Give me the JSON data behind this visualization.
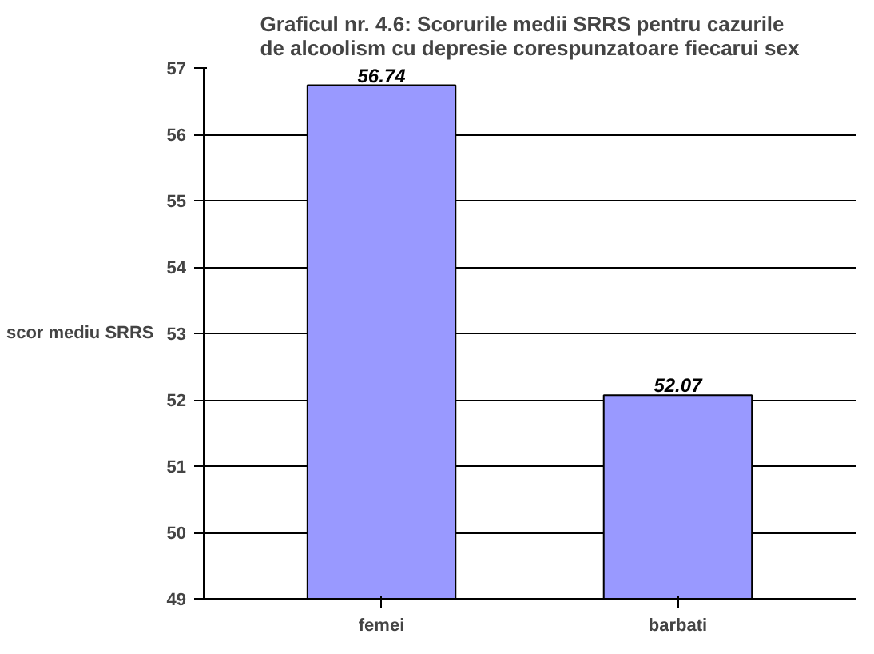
{
  "chart_data": {
    "type": "bar",
    "title": "Graficul nr. 4.6: Scorurile medii SRRS pentru cazurile\nde alcoolism cu depresie corespunzatoare fiecarui sex",
    "ylabel": "scor mediu SRRS",
    "categories": [
      "femei",
      "barbati"
    ],
    "values": [
      56.74,
      52.07
    ],
    "color": "#9999ff",
    "data_labels": true,
    "ylim": [
      49,
      57
    ],
    "yticks": [
      49,
      50,
      51,
      52,
      53,
      54,
      55,
      56,
      57
    ],
    "grid": "y"
  }
}
